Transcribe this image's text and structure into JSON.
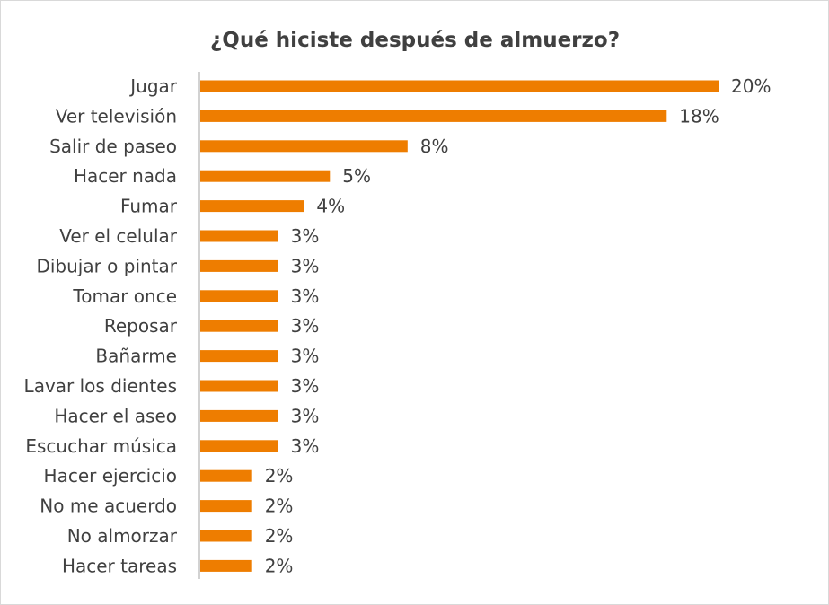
{
  "chart_data": {
    "type": "bar",
    "orientation": "horizontal",
    "title": "¿Qué hiciste después de almuerzo?",
    "categories": [
      "Jugar",
      "Ver televisión",
      "Salir de paseo",
      "Hacer nada",
      "Fumar",
      "Ver el celular",
      "Dibujar o pintar",
      "Tomar once",
      "Reposar",
      "Bañarme",
      "Lavar los dientes",
      "Hacer el aseo",
      "Escuchar música",
      "Hacer ejercicio",
      "No me acuerdo",
      "No almorzar",
      "Hacer tareas"
    ],
    "values": [
      20,
      18,
      8,
      5,
      4,
      3,
      3,
      3,
      3,
      3,
      3,
      3,
      3,
      2,
      2,
      2,
      2
    ],
    "value_labels": [
      "20%",
      "18%",
      "8%",
      "5%",
      "4%",
      "3%",
      "3%",
      "3%",
      "3%",
      "3%",
      "3%",
      "3%",
      "3%",
      "2%",
      "2%",
      "2%",
      "2%"
    ],
    "unit": "%",
    "xlim": [
      0,
      20
    ],
    "grid": false,
    "legend": "none",
    "bar_color": "#ee7d00",
    "axis_color": "#a6a6a6",
    "text_color": "#404040"
  }
}
